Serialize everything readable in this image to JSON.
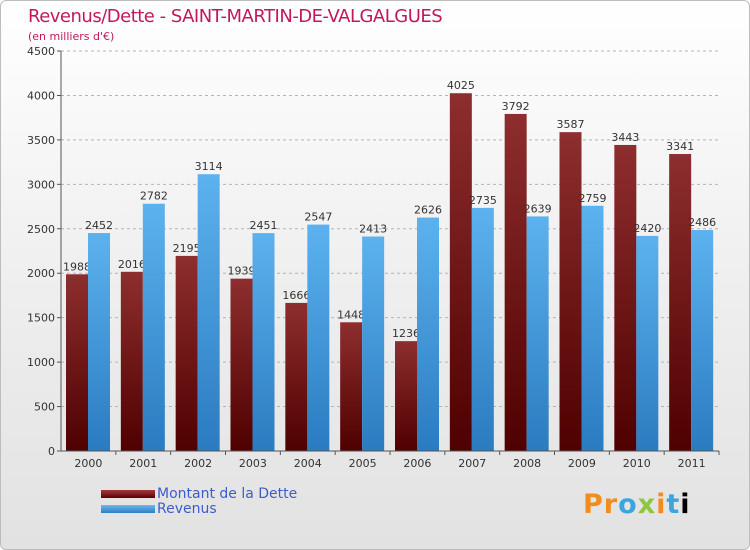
{
  "header": {
    "title": "Revenus/Dette - SAINT-MARTIN-DE-VALGALGUES",
    "subtitle": "(en milliers d'€)"
  },
  "legend": {
    "debt_label": "Montant de la Dette",
    "revenue_label": "Revenus"
  },
  "logo": {
    "letters": [
      "P",
      "r",
      "o",
      "x",
      "i",
      "t",
      "i"
    ]
  },
  "colors": {
    "debt": "#7a1a1a",
    "revenue": "#4aa3e6",
    "title": "#c2185b"
  },
  "chart_data": {
    "type": "bar",
    "title": "Revenus/Dette - SAINT-MARTIN-DE-VALGALGUES",
    "subtitle": "(en milliers d'€)",
    "categories": [
      "2000",
      "2001",
      "2002",
      "2003",
      "2004",
      "2005",
      "2006",
      "2007",
      "2008",
      "2009",
      "2010",
      "2011"
    ],
    "series": [
      {
        "name": "Montant de la Dette",
        "values": [
          1988,
          2016,
          2195,
          1939,
          1666,
          1448,
          1236,
          4025,
          3792,
          3587,
          3443,
          3341
        ]
      },
      {
        "name": "Revenus",
        "values": [
          2452,
          2782,
          3114,
          2451,
          2547,
          2413,
          2626,
          2735,
          2639,
          2759,
          2420,
          2486
        ]
      }
    ],
    "ylim": [
      0,
      4500
    ],
    "yticks": [
      0,
      500,
      1000,
      1500,
      2000,
      2500,
      3000,
      3500,
      4000,
      4500
    ],
    "grid": true,
    "legend_position": "bottom-left"
  }
}
